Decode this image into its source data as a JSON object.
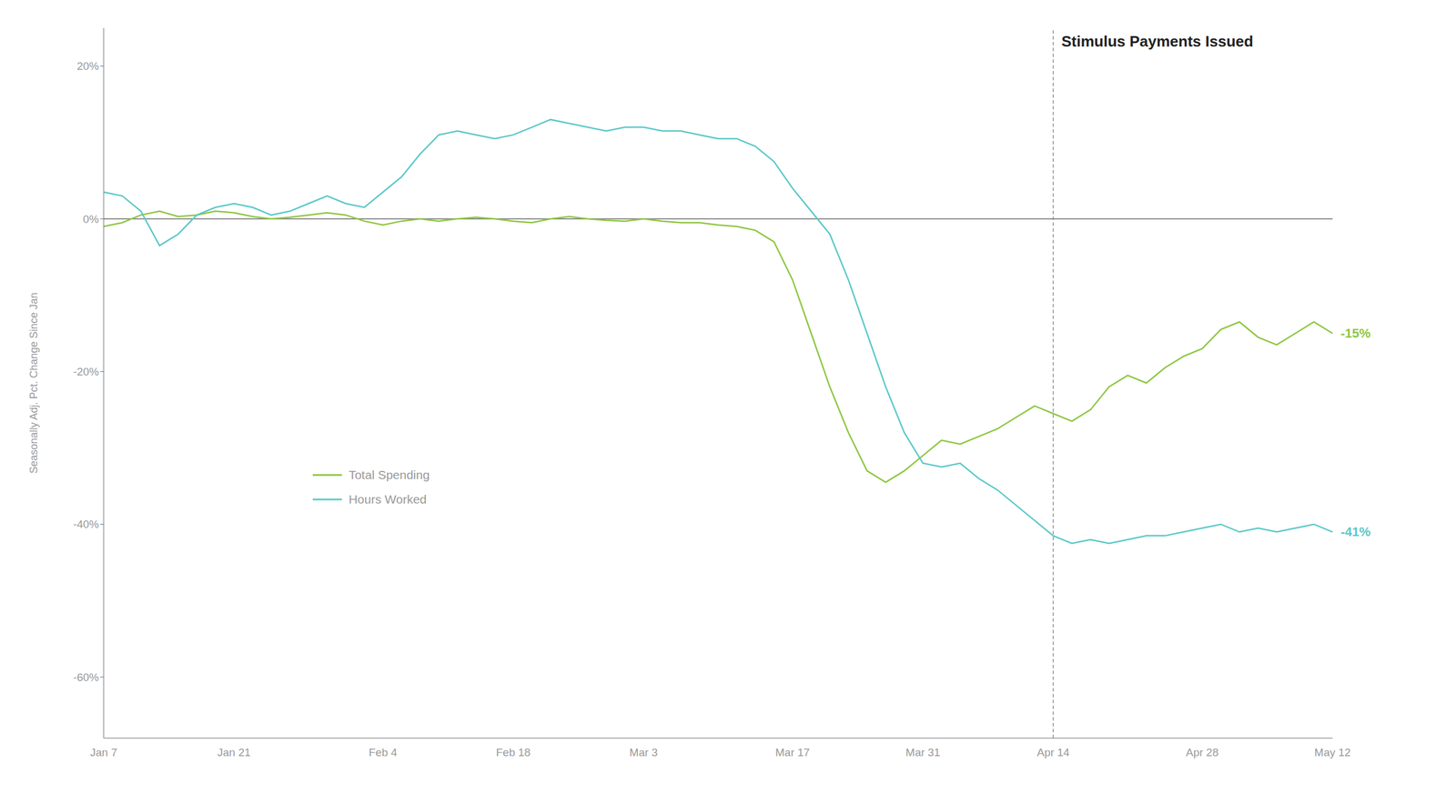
{
  "chart_data": {
    "type": "line",
    "ylabel": "Seasonally Adj. Pct. Change  Since Jan",
    "categories": [
      "Jan 7",
      null,
      null,
      null,
      null,
      null,
      null,
      "Jan 21",
      null,
      null,
      null,
      null,
      null,
      null,
      null,
      "Feb 4",
      null,
      null,
      null,
      null,
      null,
      null,
      "Feb 18",
      null,
      null,
      null,
      null,
      null,
      null,
      "Mar 3",
      null,
      null,
      null,
      null,
      null,
      null,
      null,
      "Mar 17",
      null,
      null,
      null,
      null,
      null,
      null,
      "Mar 31",
      null,
      null,
      null,
      null,
      null,
      null,
      "Apr 14",
      null,
      null,
      null,
      null,
      null,
      null,
      null,
      "Apr 28",
      null,
      null,
      null,
      null,
      null,
      null,
      "May 12"
    ],
    "series": [
      {
        "name": "Total Spending",
        "color": "#8DC63F",
        "data_labels": true,
        "values": [
          -1.0,
          -0.5,
          0.5,
          1.0,
          0.3,
          0.5,
          1.0,
          0.8,
          0.3,
          0.0,
          0.2,
          0.5,
          0.8,
          0.5,
          -0.3,
          -0.8,
          -0.3,
          0.0,
          -0.3,
          0.0,
          0.2,
          0.0,
          -0.3,
          -0.5,
          0.0,
          0.3,
          0.0,
          -0.2,
          -0.3,
          0.0,
          -0.3,
          -0.5,
          -0.5,
          -0.8,
          -1.0,
          -1.5,
          -3.0,
          -8.0,
          -15.0,
          -22.0,
          -28.0,
          -33.0,
          -34.5,
          -33.0,
          -31.0,
          -29.0,
          -29.5,
          -28.5,
          -27.5,
          -26.0,
          -24.5,
          -25.5,
          -26.5,
          -25.0,
          -22.0,
          -20.5,
          -21.5,
          -19.5,
          -18.0,
          -17.0,
          -14.5,
          -13.5,
          -15.5,
          -16.5,
          -15.0,
          -13.5,
          -15.0
        ],
        "value_labels": [
          null,
          null,
          null,
          null,
          null,
          null,
          null,
          null,
          null,
          null,
          null,
          null,
          null,
          null,
          null,
          null,
          null,
          null,
          null,
          null,
          null,
          null,
          null,
          null,
          null,
          null,
          null,
          null,
          null,
          null,
          null,
          null,
          null,
          null,
          null,
          null,
          null,
          null,
          null,
          null,
          null,
          null,
          null,
          null,
          null,
          null,
          null,
          null,
          null,
          null,
          null,
          null,
          null,
          null,
          null,
          null,
          null,
          null,
          null,
          null,
          null,
          null,
          null,
          null,
          null,
          null,
          "-15%"
        ]
      },
      {
        "name": "Hours Worked",
        "color": "#5BC8C8",
        "data_labels": true,
        "values": [
          3.5,
          3.0,
          1.0,
          -3.5,
          -2.0,
          0.5,
          1.5,
          2.0,
          1.5,
          0.5,
          1.0,
          2.0,
          3.0,
          2.0,
          1.5,
          3.5,
          5.5,
          8.5,
          11.0,
          11.5,
          11.0,
          10.5,
          11.0,
          12.0,
          13.0,
          12.5,
          12.0,
          11.5,
          12.0,
          12.0,
          11.5,
          11.5,
          11.0,
          10.5,
          10.5,
          9.5,
          7.5,
          4.0,
          1.0,
          -2.0,
          -8.0,
          -15.0,
          -22.0,
          -28.0,
          -32.0,
          -32.5,
          -32.0,
          -34.0,
          -35.5,
          -37.5,
          -39.5,
          -41.5,
          -42.5,
          -42.0,
          -42.5,
          -42.0,
          -41.5,
          -41.5,
          -41.0,
          -40.5,
          -40.0,
          -41.0,
          -40.5,
          -41.0,
          -40.5,
          -40.0,
          -41.0
        ],
        "value_labels": [
          null,
          null,
          null,
          null,
          null,
          null,
          null,
          null,
          null,
          null,
          null,
          null,
          null,
          null,
          null,
          null,
          null,
          null,
          null,
          null,
          null,
          null,
          null,
          null,
          null,
          null,
          null,
          null,
          null,
          null,
          null,
          null,
          null,
          null,
          null,
          null,
          null,
          null,
          null,
          null,
          null,
          null,
          null,
          null,
          null,
          null,
          null,
          null,
          null,
          null,
          null,
          null,
          null,
          null,
          null,
          null,
          null,
          null,
          null,
          null,
          null,
          null,
          null,
          null,
          null,
          null,
          "-41%"
        ]
      }
    ],
    "ylim": [
      -68,
      25
    ],
    "yticks": [
      {
        "value": -60,
        "label": "-60%"
      },
      {
        "value": -40,
        "label": "-40%"
      },
      {
        "value": -20,
        "label": "-20%"
      },
      {
        "value": 0,
        "label": "0%"
      },
      {
        "value": 20,
        "label": "20%"
      }
    ],
    "annotations": [
      {
        "y": 0,
        "color": "#666666",
        "line_style": "solid"
      },
      {
        "x": "Apr 14",
        "text": "Stimulus Payments Issued",
        "color": "#888888",
        "line_style": "dashed"
      }
    ],
    "grid": false,
    "legend": "lower left"
  }
}
